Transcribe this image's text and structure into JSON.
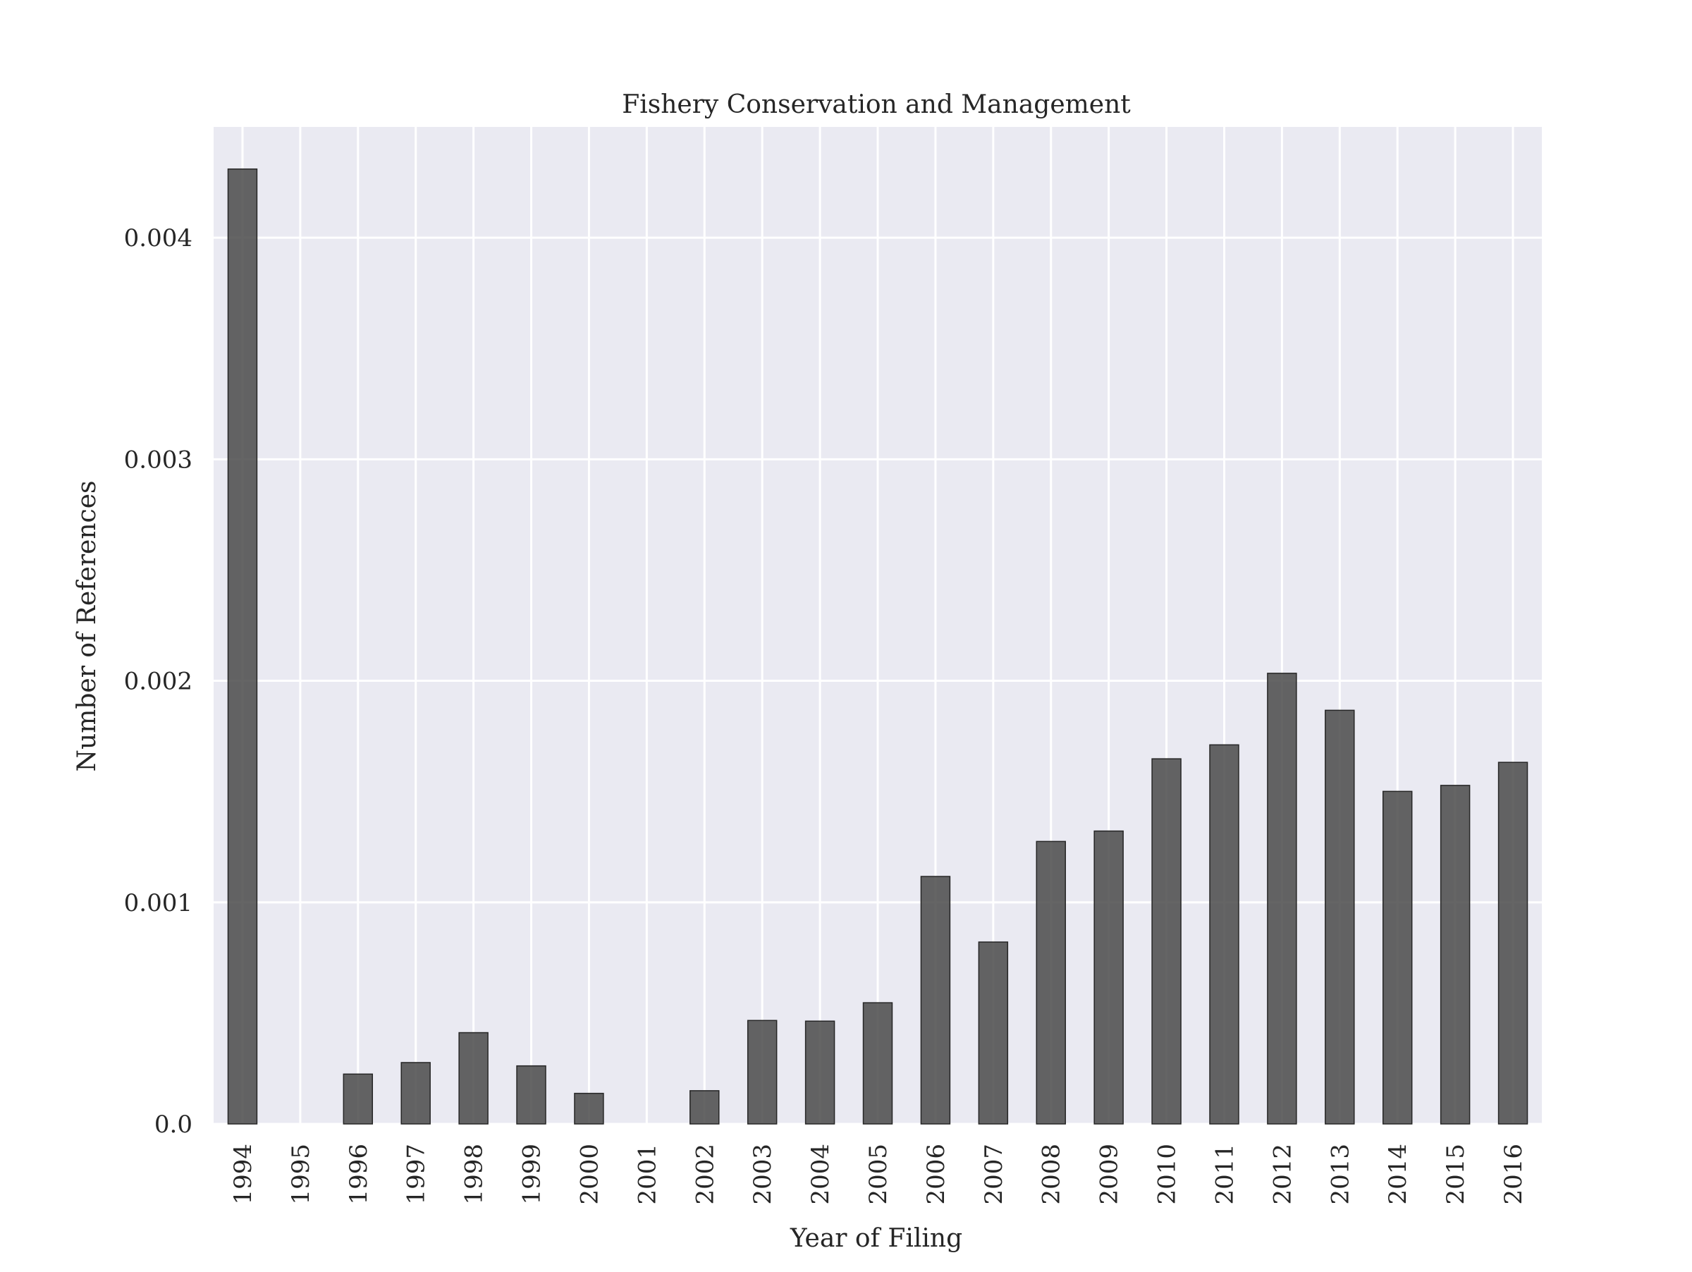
{
  "chart_data": {
    "type": "bar",
    "title": "Fishery Conservation and Management",
    "xlabel": "Year of Filing",
    "ylabel": "Number of References",
    "categories": [
      "1994",
      "1995",
      "1996",
      "1997",
      "1998",
      "1999",
      "2000",
      "2001",
      "2002",
      "2003",
      "2004",
      "2005",
      "2006",
      "2007",
      "2008",
      "2009",
      "2010",
      "2011",
      "2012",
      "2013",
      "2014",
      "2015",
      "2016"
    ],
    "values": [
      0.00431,
      0.0,
      0.000225,
      0.000277,
      0.000412,
      0.000262,
      0.000138,
      0.0,
      0.00015,
      0.000467,
      0.000464,
      0.000547,
      0.001117,
      0.000821,
      0.001275,
      0.001322,
      0.001648,
      0.001711,
      0.002034,
      0.001867,
      0.001501,
      0.001528,
      0.001632
    ],
    "ylim": [
      0,
      0.0045
    ],
    "yticks": [
      0.0,
      0.001,
      0.002,
      0.003,
      0.004
    ],
    "ytick_labels": [
      "0.0",
      "0.001",
      "0.002",
      "0.003",
      "0.004"
    ],
    "grid": true,
    "colors": {
      "plot_background": "#eaeaf2",
      "gridline": "#ffffff",
      "bar_fill": "#4a4a4a",
      "bar_edge": "#262626"
    }
  }
}
